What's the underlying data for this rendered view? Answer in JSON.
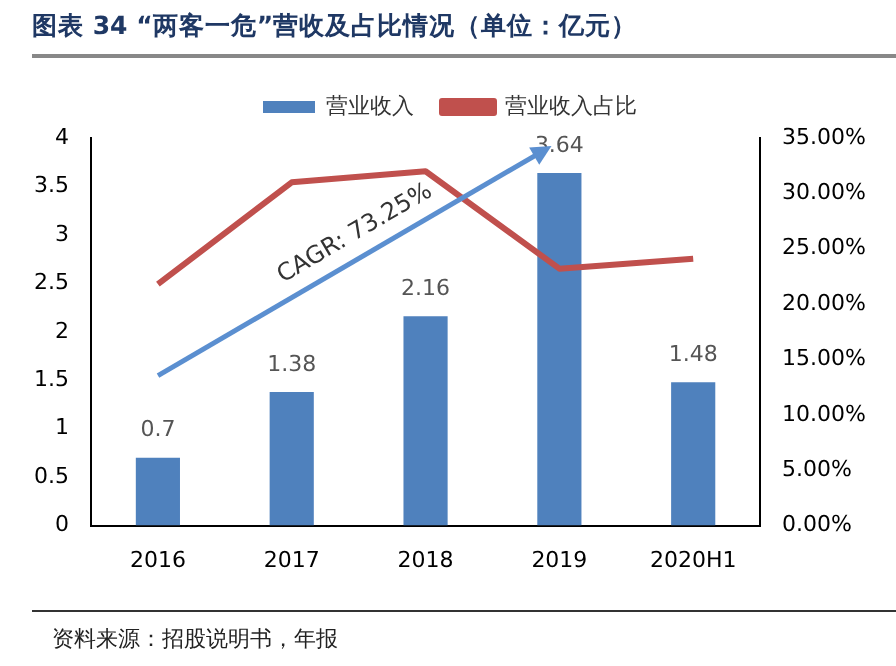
{
  "chart_data": {
    "type": "bar",
    "title": "图表 34 “两客一危”营收及占比情况（单位：亿元）",
    "categories": [
      "2016",
      "2017",
      "2018",
      "2019",
      "2020H1"
    ],
    "series": [
      {
        "name": "营业收入",
        "color": "#4f81bd",
        "values": [
          0.7,
          1.38,
          2.16,
          3.64,
          1.48
        ],
        "value_labels": [
          "0.7",
          "1.38",
          "2.16",
          "3.64",
          "1.48"
        ]
      },
      {
        "name": "营业收入占比",
        "type": "line",
        "axis": "y2",
        "color": "#c0504d",
        "values": [
          21.8,
          31.0,
          32.0,
          23.2,
          24.1
        ]
      }
    ],
    "ylim": [
      0,
      4
    ],
    "yticks": [
      0,
      0.5,
      1,
      1.5,
      2,
      2.5,
      3,
      3.5,
      4
    ],
    "y2lim": [
      0,
      35
    ],
    "y2ticks": [
      {
        "value": 0,
        "label": "0.00%"
      },
      {
        "value": 5,
        "label": "5.00%"
      },
      {
        "value": 10,
        "label": "10.00%"
      },
      {
        "value": 15,
        "label": "15.00%"
      },
      {
        "value": 20,
        "label": "20.00%"
      },
      {
        "value": 25,
        "label": "25.00%"
      },
      {
        "value": 30,
        "label": "30.00%"
      },
      {
        "value": 35,
        "label": "35.00%"
      }
    ],
    "grid": false,
    "legend": "top",
    "marker": "none",
    "line_style": "solid",
    "annotations": [
      "CAGR: 73.25%",
      "资料来源：招股说明书，年报"
    ]
  }
}
